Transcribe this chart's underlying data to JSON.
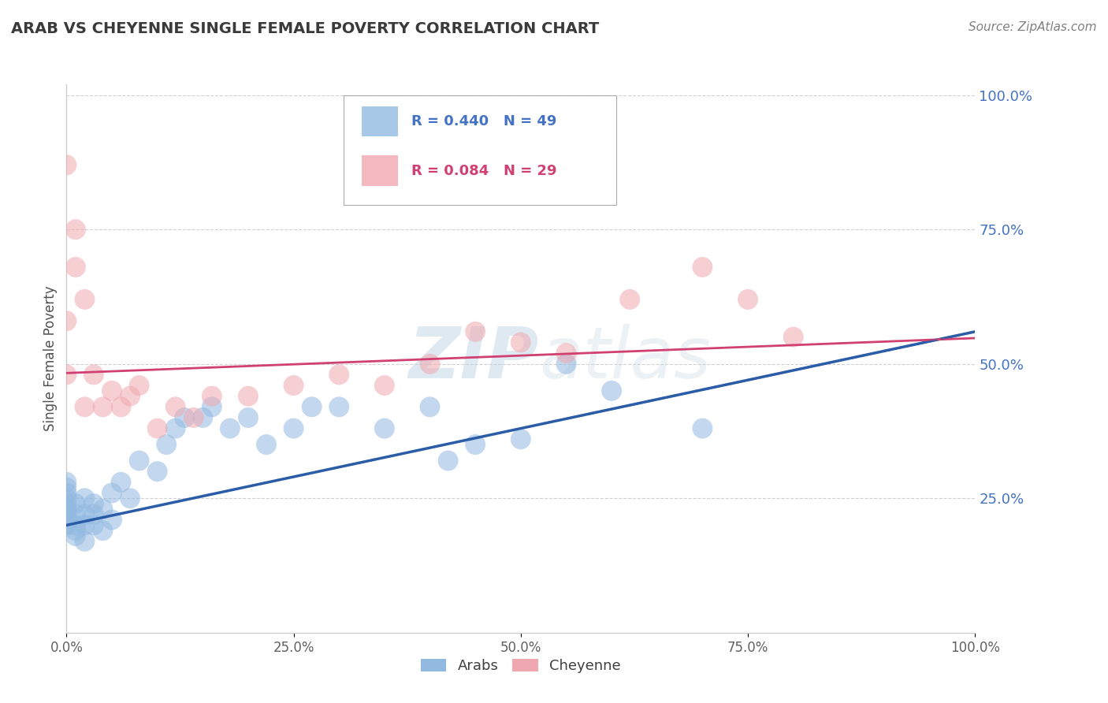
{
  "title": "ARAB VS CHEYENNE SINGLE FEMALE POVERTY CORRELATION CHART",
  "source": "Source: ZipAtlas.com",
  "ylabel": "Single Female Poverty",
  "arab_R": 0.44,
  "arab_N": 49,
  "cheyenne_R": 0.084,
  "cheyenne_N": 29,
  "arab_color": "#92b9e0",
  "cheyenne_color": "#f0a8b0",
  "arab_color_line": "#2a5ca8",
  "cheyenne_color_line": "#d04070",
  "arab_color_legend": "#a8c8e8",
  "cheyenne_color_legend": "#f4b8c0",
  "watermark": "ZIPatlas",
  "ytick_labels": [
    "25.0%",
    "50.0%",
    "75.0%",
    "100.0%"
  ],
  "ytick_values": [
    0.25,
    0.5,
    0.75,
    1.0
  ],
  "xtick_labels": [
    "0.0%",
    "25.0%",
    "50.0%",
    "75.0%",
    "100.0%"
  ],
  "xtick_values": [
    0.0,
    0.25,
    0.5,
    0.75,
    1.0
  ],
  "arab_x": [
    0.0,
    0.0,
    0.0,
    0.0,
    0.0,
    0.0,
    0.0,
    0.0,
    0.0,
    0.0,
    0.01,
    0.01,
    0.01,
    0.01,
    0.01,
    0.02,
    0.02,
    0.02,
    0.02,
    0.03,
    0.03,
    0.03,
    0.04,
    0.04,
    0.05,
    0.05,
    0.06,
    0.07,
    0.08,
    0.1,
    0.11,
    0.12,
    0.13,
    0.15,
    0.16,
    0.18,
    0.2,
    0.22,
    0.25,
    0.27,
    0.3,
    0.35,
    0.4,
    0.42,
    0.45,
    0.5,
    0.55,
    0.6,
    0.7
  ],
  "arab_y": [
    0.2,
    0.22,
    0.23,
    0.24,
    0.25,
    0.26,
    0.27,
    0.28,
    0.23,
    0.21,
    0.18,
    0.19,
    0.2,
    0.22,
    0.24,
    0.17,
    0.2,
    0.22,
    0.25,
    0.2,
    0.22,
    0.24,
    0.19,
    0.23,
    0.21,
    0.26,
    0.28,
    0.25,
    0.32,
    0.3,
    0.35,
    0.38,
    0.4,
    0.4,
    0.42,
    0.38,
    0.4,
    0.35,
    0.38,
    0.42,
    0.42,
    0.38,
    0.42,
    0.32,
    0.35,
    0.36,
    0.5,
    0.45,
    0.38
  ],
  "cheyenne_x": [
    0.0,
    0.0,
    0.0,
    0.01,
    0.01,
    0.02,
    0.02,
    0.03,
    0.04,
    0.05,
    0.06,
    0.07,
    0.08,
    0.1,
    0.12,
    0.14,
    0.16,
    0.2,
    0.25,
    0.3,
    0.35,
    0.4,
    0.45,
    0.5,
    0.55,
    0.62,
    0.7,
    0.75,
    0.8
  ],
  "cheyenne_y": [
    0.87,
    0.58,
    0.48,
    0.68,
    0.75,
    0.62,
    0.42,
    0.48,
    0.42,
    0.45,
    0.42,
    0.44,
    0.46,
    0.38,
    0.42,
    0.4,
    0.44,
    0.44,
    0.46,
    0.48,
    0.46,
    0.5,
    0.56,
    0.54,
    0.52,
    0.62,
    0.68,
    0.62,
    0.55
  ],
  "background_color": "#ffffff",
  "grid_color": "#cccccc",
  "title_color": "#3a3a3a",
  "source_color": "#808080",
  "tick_color": "#4472c4"
}
